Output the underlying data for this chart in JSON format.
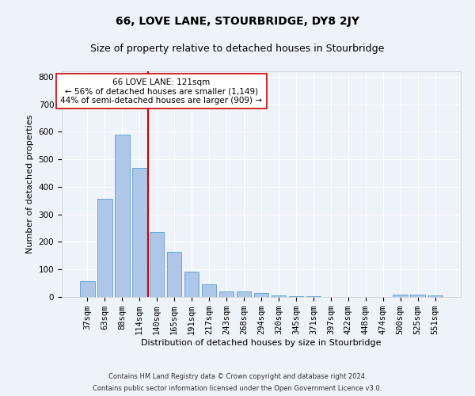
{
  "title": "66, LOVE LANE, STOURBRIDGE, DY8 2JY",
  "subtitle": "Size of property relative to detached houses in Stourbridge",
  "xlabel": "Distribution of detached houses by size in Stourbridge",
  "ylabel": "Number of detached properties",
  "footnote1": "Contains HM Land Registry data © Crown copyright and database right 2024.",
  "footnote2": "Contains public sector information licensed under the Open Government Licence v3.0.",
  "categories": [
    "37sqm",
    "63sqm",
    "88sqm",
    "114sqm",
    "140sqm",
    "165sqm",
    "191sqm",
    "217sqm",
    "243sqm",
    "268sqm",
    "294sqm",
    "320sqm",
    "345sqm",
    "371sqm",
    "397sqm",
    "422sqm",
    "448sqm",
    "474sqm",
    "500sqm",
    "525sqm",
    "551sqm"
  ],
  "values": [
    57,
    356,
    590,
    468,
    235,
    163,
    93,
    45,
    20,
    19,
    14,
    6,
    4,
    2,
    1,
    0,
    1,
    0,
    9,
    9,
    5
  ],
  "bar_color": "#aec6e8",
  "bar_edge_color": "#5a9fd4",
  "property_size_bin_index": 3,
  "annotation_title": "66 LOVE LANE: 121sqm",
  "annotation_line1": "← 56% of detached houses are smaller (1,149)",
  "annotation_line2": "44% of semi-detached houses are larger (909) →",
  "vline_color": "#cc0000",
  "annotation_box_color": "#ffffff",
  "annotation_box_edge": "#cc0000",
  "ylim": [
    0,
    820
  ],
  "yticks": [
    0,
    100,
    200,
    300,
    400,
    500,
    600,
    700,
    800
  ],
  "background_color": "#eef2f9",
  "grid_color": "#ffffff",
  "title_fontsize": 10,
  "subtitle_fontsize": 9,
  "axis_label_fontsize": 8,
  "tick_fontsize": 7.5,
  "footnote_fontsize": 6
}
